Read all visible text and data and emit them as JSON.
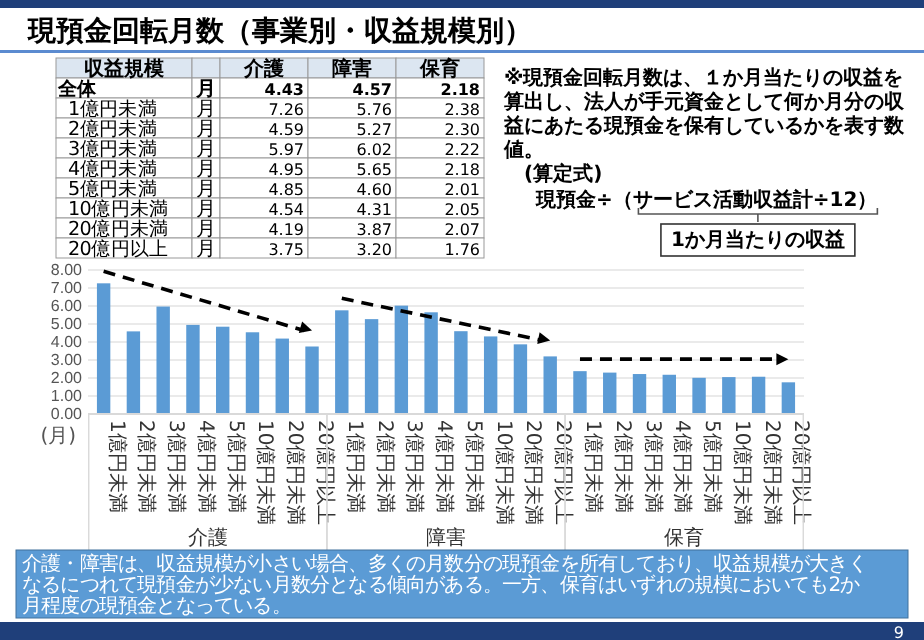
{
  "chart_data": [
    {
      "type": "other",
      "title": "現預金回転月数（事業別・収益規模別）",
      "annotations": [
        "収益規模",
        "介護",
        "障害",
        "保育",
        "全体",
        "月",
        "4.43",
        "4.57",
        "2.18",
        "1億円未満",
        "月",
        "7.26",
        "5.76",
        "2.38",
        "2億円未満",
        "月",
        "4.59",
        "5.27",
        "2.30",
        "3億円未満",
        "月",
        "5.97",
        "6.02",
        "2.22",
        "4億円未満",
        "月",
        "4.95",
        "5.65",
        "2.18",
        "5億円未満",
        "月",
        "4.85",
        "4.60",
        "2.01",
        "10億円未満",
        "月",
        "4.54",
        "4.31",
        "2.05",
        "20億円未満",
        "月",
        "4.19",
        "3.87",
        "2.07",
        "20億円以上",
        "月",
        "3.75",
        "3.20",
        "1.76",
        "※現預金回転月数は、１か月当たりの収益を算出し、法人が手元資金として何か月分の収益にあたる現預金を保有しているかを表す数値。",
        "(算定式)",
        "現預金÷（サービス活動収益計÷12）",
        "1か月当たりの収益"
      ]
    },
    {
      "type": "bar",
      "ylabel": "(月)",
      "categories": [
        "1億円未満",
        "2億円未満",
        "3億円未満",
        "4億円未満",
        "5億円未満",
        "10億円未満",
        "20億円未満",
        "20億円以上",
        "1億円未満",
        "2億円未満",
        "3億円未満",
        "4億円未満",
        "5億円未満",
        "10億円未満",
        "20億円未満",
        "20億円以上",
        "1億円未満",
        "2億円未満",
        "3億円未満",
        "4億円未満",
        "5億円未満",
        "10億円未満",
        "20億円未満",
        "20億円以上"
      ],
      "values": [
        7.26,
        4.59,
        5.97,
        4.95,
        4.85,
        4.54,
        4.19,
        3.75,
        5.76,
        5.27,
        6.02,
        5.65,
        4.6,
        4.31,
        3.87,
        3.2,
        2.38,
        2.3,
        2.22,
        2.18,
        2.01,
        2.05,
        2.07,
        1.76
      ],
      "color": "#5b9bd5",
      "ylim": [
        0,
        8
      ],
      "yticks": [
        {
          "value": 0,
          "label": "0.00"
        },
        {
          "value": 1,
          "label": "1.00"
        },
        {
          "value": 2,
          "label": "2.00"
        },
        {
          "value": 3,
          "label": "3.00"
        },
        {
          "value": 4,
          "label": "4.00"
        },
        {
          "value": 5,
          "label": "5.00"
        },
        {
          "value": 6,
          "label": "6.00"
        },
        {
          "value": 7,
          "label": "7.00"
        },
        {
          "value": 8,
          "label": "8.00"
        }
      ],
      "grid": "y",
      "annotations": [
        "介護",
        "障害",
        "保育",
        "介護・障害は、収益規模が小さい場合、多くの月数分の現預金を所有しており、収益規模が大きくなるにつれて現預金が少ない月数分となる傾向がある。一方、保育はいずれの規模においても2か月程度の現預金となっている。",
        "9"
      ]
    }
  ]
}
